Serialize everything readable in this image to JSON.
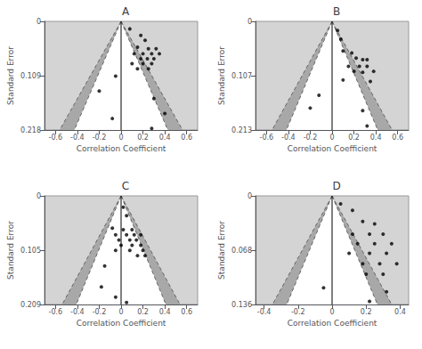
{
  "chart_data": [
    {
      "type": "scatter",
      "title": "A",
      "xlabel": "Correlation Coefficient",
      "ylabel": "Standard Error",
      "x": [
        0.08,
        0.18,
        0.22,
        0.15,
        0.25,
        0.32,
        0.12,
        0.2,
        0.28,
        0.35,
        0.18,
        0.24,
        0.3,
        0.1,
        0.2,
        0.28,
        0.15,
        0.25,
        -0.05,
        -0.2,
        0.3,
        0.4,
        -0.08,
        0.28
      ],
      "values": [
        0.015,
        0.028,
        0.038,
        0.052,
        0.055,
        0.055,
        0.065,
        0.065,
        0.065,
        0.065,
        0.075,
        0.075,
        0.075,
        0.085,
        0.085,
        0.085,
        0.095,
        0.095,
        0.11,
        0.14,
        0.155,
        0.185,
        0.195,
        0.215
      ],
      "color": "#000000",
      "xlim": [
        -0.7,
        0.7
      ],
      "ylim": [
        0.218,
        0
      ],
      "xticks": [
        -0.6,
        -0.4,
        -0.2,
        0,
        0.2,
        0.4,
        0.6
      ],
      "yticks": [
        0,
        0.109,
        0.218
      ],
      "grid": false,
      "funnel": {
        "se": 0.218,
        "inner": 0.42728,
        "outer": 0.561568,
        "inner_color": "#ffffff",
        "outer_color": "#a8a8a8",
        "line_color": "#666666",
        "center_color": "#000000",
        "background": "#d4d4d4"
      }
    },
    {
      "type": "scatter",
      "title": "B",
      "xlabel": "Correlation Coefficient",
      "ylabel": "Standard Error",
      "x": [
        0.05,
        0.08,
        0.1,
        0.18,
        0.22,
        0.28,
        0.32,
        0.15,
        0.25,
        0.32,
        0.2,
        0.28,
        0.38,
        0.1,
        0.35,
        -0.12,
        -0.2,
        0.28,
        0.32
      ],
      "values": [
        0.018,
        0.035,
        0.058,
        0.062,
        0.072,
        0.075,
        0.075,
        0.088,
        0.088,
        0.088,
        0.098,
        0.1,
        0.098,
        0.115,
        0.118,
        0.145,
        0.17,
        0.175,
        0.205
      ],
      "color": "#000000",
      "xlim": [
        -0.7,
        0.7
      ],
      "ylim": [
        0.213,
        0
      ],
      "xticks": [
        -0.6,
        -0.4,
        -0.2,
        0,
        0.2,
        0.4,
        0.6
      ],
      "yticks": [
        0,
        0.107,
        0.213
      ],
      "grid": false,
      "funnel": {
        "se": 0.213,
        "inner": 0.41748,
        "outer": 0.548688,
        "inner_color": "#ffffff",
        "outer_color": "#a8a8a8",
        "line_color": "#666666",
        "center_color": "#000000",
        "background": "#d4d4d4"
      }
    },
    {
      "type": "scatter",
      "title": "C",
      "xlabel": "Correlation Coefficient",
      "ylabel": "Standard Error",
      "x": [
        0.02,
        0.05,
        -0.08,
        0.02,
        0.1,
        -0.05,
        0.05,
        0.12,
        0.18,
        -0.02,
        0.08,
        0.14,
        0.0,
        0.1,
        0.18,
        -0.05,
        0.08,
        0.2,
        0.15,
        0.22,
        -0.15,
        -0.18,
        -0.05,
        0.05
      ],
      "values": [
        0.022,
        0.038,
        0.062,
        0.065,
        0.065,
        0.075,
        0.075,
        0.075,
        0.075,
        0.085,
        0.085,
        0.085,
        0.095,
        0.095,
        0.095,
        0.105,
        0.105,
        0.105,
        0.115,
        0.115,
        0.135,
        0.175,
        0.195,
        0.205
      ],
      "color": "#000000",
      "xlim": [
        -0.7,
        0.7
      ],
      "ylim": [
        0.209,
        0
      ],
      "xticks": [
        -0.6,
        -0.4,
        -0.2,
        0,
        0.2,
        0.4,
        0.6
      ],
      "yticks": [
        0,
        0.105,
        0.209
      ],
      "grid": false,
      "funnel": {
        "se": 0.209,
        "inner": 0.40964,
        "outer": 0.538384,
        "inner_color": "#ffffff",
        "outer_color": "#a8a8a8",
        "line_color": "#666666",
        "center_color": "#000000",
        "background": "#d4d4d4"
      }
    },
    {
      "type": "scatter",
      "title": "D",
      "xlabel": "Correlation Coefficient",
      "ylabel": "Standard Error",
      "x": [
        0.05,
        0.12,
        0.18,
        0.25,
        0.12,
        0.22,
        0.3,
        0.15,
        0.25,
        0.35,
        0.1,
        0.22,
        0.32,
        0.18,
        0.28,
        0.38,
        0.2,
        0.3,
        -0.05,
        0.32,
        0.22
      ],
      "values": [
        0.01,
        0.018,
        0.032,
        0.035,
        0.048,
        0.048,
        0.048,
        0.06,
        0.06,
        0.06,
        0.072,
        0.072,
        0.072,
        0.085,
        0.085,
        0.085,
        0.098,
        0.098,
        0.115,
        0.12,
        0.132
      ],
      "color": "#000000",
      "xlim": [
        -0.45,
        0.45
      ],
      "ylim": [
        0.136,
        0
      ],
      "xticks": [
        -0.4,
        -0.2,
        0,
        0.2,
        0.4
      ],
      "yticks": [
        0,
        0.068,
        0.136
      ],
      "grid": false,
      "funnel": {
        "se": 0.136,
        "inner": 0.26656,
        "outer": 0.350336,
        "inner_color": "#ffffff",
        "outer_color": "#a8a8a8",
        "line_color": "#666666",
        "center_color": "#000000",
        "background": "#d4d4d4"
      }
    }
  ]
}
